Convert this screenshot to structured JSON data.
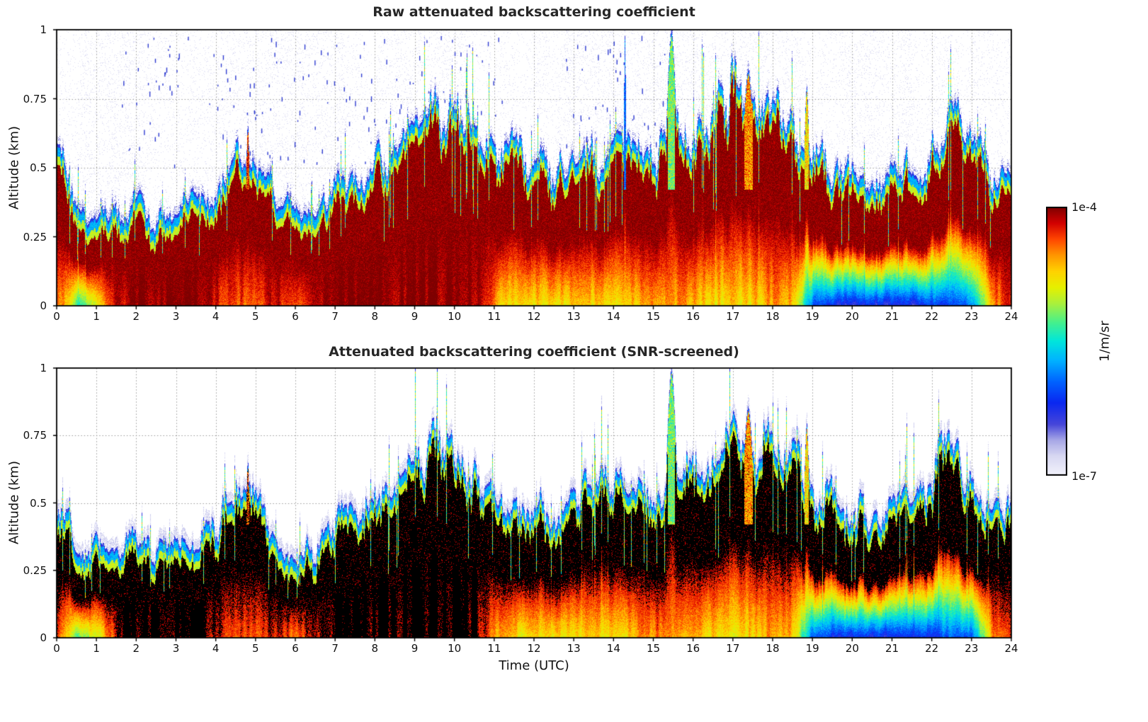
{
  "figure": {
    "xlabel": "Time (UTC)",
    "background": "#ffffff",
    "colorbar": {
      "label": "1/m/sr",
      "max_label": "1e-4",
      "min_label": "1e-7",
      "vmin": 1e-07,
      "vmax": 0.0001,
      "scale": "log"
    },
    "colormap_stops": [
      {
        "p": 0.0,
        "c": "#f2f2fb"
      },
      {
        "p": 0.07,
        "c": "#d9d9f2"
      },
      {
        "p": 0.13,
        "c": "#a8a8e6"
      },
      {
        "p": 0.19,
        "c": "#4646d9"
      },
      {
        "p": 0.27,
        "c": "#0a28f0"
      },
      {
        "p": 0.35,
        "c": "#0064ff"
      },
      {
        "p": 0.43,
        "c": "#00b4ff"
      },
      {
        "p": 0.5,
        "c": "#00e6dc"
      },
      {
        "p": 0.57,
        "c": "#46f08c"
      },
      {
        "p": 0.64,
        "c": "#aaf03c"
      },
      {
        "p": 0.7,
        "c": "#e6f000"
      },
      {
        "p": 0.76,
        "c": "#ffd200"
      },
      {
        "p": 0.82,
        "c": "#ff9600"
      },
      {
        "p": 0.88,
        "c": "#ff4600"
      },
      {
        "p": 0.94,
        "c": "#d20000"
      },
      {
        "p": 1.0,
        "c": "#7d0000"
      }
    ]
  },
  "chart_data": [
    {
      "type": "heatmap",
      "title": "Raw attenuated backscattering coefficient",
      "xlabel": "",
      "ylabel": "Altitude (km)",
      "xlim": [
        0,
        24
      ],
      "ylim": [
        0,
        1
      ],
      "x_ticks": [
        0,
        1,
        2,
        3,
        4,
        5,
        6,
        7,
        8,
        9,
        10,
        11,
        12,
        13,
        14,
        15,
        16,
        17,
        18,
        19,
        20,
        21,
        22,
        23,
        24
      ],
      "x_tick_labels": [
        "0",
        "1",
        "2",
        "3",
        "4",
        "5",
        "6",
        "7",
        "8",
        "9",
        "10",
        "11",
        "12",
        "13",
        "14",
        "15",
        "16",
        "17",
        "18",
        "19",
        "20",
        "21",
        "22",
        "23",
        "24"
      ],
      "y_ticks": [
        0,
        0.25,
        0.5,
        0.75,
        1
      ],
      "y_tick_labels": [
        "0",
        "0.25",
        "0.5",
        "0.75",
        "1"
      ],
      "grid": true,
      "screened": false,
      "colorbar": {
        "label": "1/m/sr",
        "min": 1e-07,
        "max": 0.0001,
        "scale": "log"
      },
      "aerosol_top_km": {
        "t": [
          0,
          0.5,
          1,
          1.5,
          2,
          2.5,
          3,
          3.5,
          4,
          4.5,
          5,
          5.5,
          6,
          6.5,
          7,
          7.5,
          8,
          8.5,
          9,
          9.5,
          10,
          10.5,
          11,
          11.5,
          12,
          12.5,
          13,
          13.5,
          14,
          14.5,
          15,
          15.5,
          16,
          16.5,
          17,
          17.5,
          18,
          18.5,
          19,
          19.5,
          20,
          20.5,
          21,
          21.5,
          22,
          22.5,
          23,
          23.5,
          24
        ],
        "h": [
          0.48,
          0.35,
          0.32,
          0.3,
          0.33,
          0.3,
          0.35,
          0.38,
          0.4,
          0.5,
          0.48,
          0.35,
          0.32,
          0.35,
          0.48,
          0.45,
          0.5,
          0.5,
          0.55,
          0.62,
          0.6,
          0.55,
          0.5,
          0.48,
          0.5,
          0.48,
          0.5,
          0.52,
          0.55,
          0.58,
          0.55,
          0.6,
          0.6,
          0.65,
          0.7,
          0.62,
          0.65,
          0.6,
          0.5,
          0.45,
          0.45,
          0.42,
          0.45,
          0.45,
          0.55,
          0.68,
          0.55,
          0.45,
          0.5
        ]
      },
      "surface_log10_backscatter": {
        "t": [
          0,
          0.5,
          1,
          1.5,
          2,
          2.5,
          3,
          3.5,
          4,
          4.5,
          5,
          5.5,
          6,
          6.5,
          7,
          7.5,
          8,
          8.5,
          9,
          9.5,
          10,
          10.5,
          11,
          11.5,
          12,
          12.5,
          13,
          13.5,
          14,
          14.5,
          15,
          15.5,
          16,
          16.5,
          17,
          17.5,
          18,
          18.5,
          19,
          19.5,
          20,
          20.5,
          21,
          21.5,
          22,
          22.5,
          23,
          23.5,
          24
        ],
        "v": [
          -4.3,
          -5.4,
          -5.0,
          -4.2,
          -4.0,
          -4.0,
          -4.0,
          -4.0,
          -4.2,
          -4.4,
          -4.3,
          -4.2,
          -4.5,
          -4.1,
          -4.0,
          -4.0,
          -4.0,
          -4.0,
          -4.0,
          -4.0,
          -4.0,
          -4.0,
          -4.6,
          -4.8,
          -4.8,
          -4.8,
          -4.8,
          -4.8,
          -4.8,
          -4.7,
          -4.5,
          -4.6,
          -4.7,
          -4.8,
          -4.8,
          -4.8,
          -4.6,
          -4.7,
          -6.0,
          -6.3,
          -6.3,
          -6.3,
          -6.3,
          -6.3,
          -6.2,
          -6.0,
          -6.0,
          -4.6,
          -4.3
        ]
      },
      "plumes": [
        {
          "t": 4.8,
          "top": 0.66,
          "width": 0.1,
          "core_log10": -4.3
        },
        {
          "t": 14.28,
          "top": 0.98,
          "width": 0.06,
          "core_log10": -6.0,
          "raw_only": true
        },
        {
          "t": 15.45,
          "top": 1.0,
          "width": 0.26,
          "core_log10": -5.2
        },
        {
          "t": 17.38,
          "top": 0.86,
          "width": 0.3,
          "core_log10": -4.55
        },
        {
          "t": 18.85,
          "top": 0.8,
          "width": 0.14,
          "core_log10": -4.8
        }
      ]
    },
    {
      "type": "heatmap",
      "title": "Attenuated backscattering coefficient (SNR-screened)",
      "xlabel": "Time (UTC)",
      "ylabel": "Altitude (km)",
      "xlim": [
        0,
        24
      ],
      "ylim": [
        0,
        1
      ],
      "x_ticks": [
        0,
        1,
        2,
        3,
        4,
        5,
        6,
        7,
        8,
        9,
        10,
        11,
        12,
        13,
        14,
        15,
        16,
        17,
        18,
        19,
        20,
        21,
        22,
        23,
        24
      ],
      "x_tick_labels": [
        "0",
        "1",
        "2",
        "3",
        "4",
        "5",
        "6",
        "7",
        "8",
        "9",
        "10",
        "11",
        "12",
        "13",
        "14",
        "15",
        "16",
        "17",
        "18",
        "19",
        "20",
        "21",
        "22",
        "23",
        "24"
      ],
      "y_ticks": [
        0,
        0.25,
        0.5,
        0.75,
        1
      ],
      "y_tick_labels": [
        "0",
        "0.25",
        "0.5",
        "0.75",
        "1"
      ],
      "grid": true,
      "screened": true,
      "colorbar": {
        "label": "1/m/sr",
        "min": 1e-07,
        "max": 0.0001,
        "scale": "log"
      },
      "aerosol_top_km": {
        "t": [
          0,
          0.5,
          1,
          1.5,
          2,
          2.5,
          3,
          3.5,
          4,
          4.5,
          5,
          5.5,
          6,
          6.5,
          7,
          7.5,
          8,
          8.5,
          9,
          9.5,
          10,
          10.5,
          11,
          11.5,
          12,
          12.5,
          13,
          13.5,
          14,
          14.5,
          15,
          15.5,
          16,
          16.5,
          17,
          17.5,
          18,
          18.5,
          19,
          19.5,
          20,
          20.5,
          21,
          21.5,
          22,
          22.5,
          23,
          23.5,
          24
        ],
        "h": [
          0.48,
          0.35,
          0.32,
          0.3,
          0.33,
          0.3,
          0.35,
          0.38,
          0.4,
          0.5,
          0.48,
          0.35,
          0.32,
          0.35,
          0.48,
          0.45,
          0.5,
          0.5,
          0.55,
          0.62,
          0.6,
          0.55,
          0.5,
          0.48,
          0.5,
          0.48,
          0.5,
          0.52,
          0.55,
          0.58,
          0.55,
          0.6,
          0.6,
          0.65,
          0.7,
          0.62,
          0.65,
          0.6,
          0.5,
          0.45,
          0.45,
          0.42,
          0.45,
          0.45,
          0.55,
          0.68,
          0.55,
          0.45,
          0.5
        ]
      },
      "surface_log10_backscatter": {
        "t": [
          0,
          0.5,
          1,
          1.5,
          2,
          2.5,
          3,
          3.5,
          4,
          4.5,
          5,
          5.5,
          6,
          6.5,
          7,
          7.5,
          8,
          8.5,
          9,
          9.5,
          10,
          10.5,
          11,
          11.5,
          12,
          12.5,
          13,
          13.5,
          14,
          14.5,
          15,
          15.5,
          16,
          16.5,
          17,
          17.5,
          18,
          18.5,
          19,
          19.5,
          20,
          20.5,
          21,
          21.5,
          22,
          22.5,
          23,
          23.5,
          24
        ],
        "v": [
          -4.3,
          -5.4,
          -5.0,
          -4.2,
          -4.0,
          -4.0,
          -4.0,
          -4.0,
          -4.2,
          -4.4,
          -4.3,
          -4.2,
          -4.5,
          -4.1,
          -4.0,
          -4.0,
          -4.0,
          -4.0,
          -4.0,
          -4.0,
          -4.0,
          -4.0,
          -4.6,
          -4.8,
          -4.8,
          -4.8,
          -4.8,
          -4.8,
          -4.8,
          -4.7,
          -4.5,
          -4.6,
          -4.7,
          -4.8,
          -4.8,
          -4.8,
          -4.6,
          -4.7,
          -6.0,
          -6.3,
          -6.3,
          -6.3,
          -6.3,
          -6.3,
          -6.2,
          -6.0,
          -6.0,
          -4.6,
          -4.3
        ]
      },
      "plumes": [
        {
          "t": 4.8,
          "top": 0.66,
          "width": 0.1,
          "core_log10": -4.3
        },
        {
          "t": 15.45,
          "top": 1.0,
          "width": 0.26,
          "core_log10": -5.2
        },
        {
          "t": 17.38,
          "top": 0.86,
          "width": 0.3,
          "core_log10": -4.55
        },
        {
          "t": 18.85,
          "top": 0.8,
          "width": 0.14,
          "core_log10": -4.8
        }
      ]
    }
  ]
}
